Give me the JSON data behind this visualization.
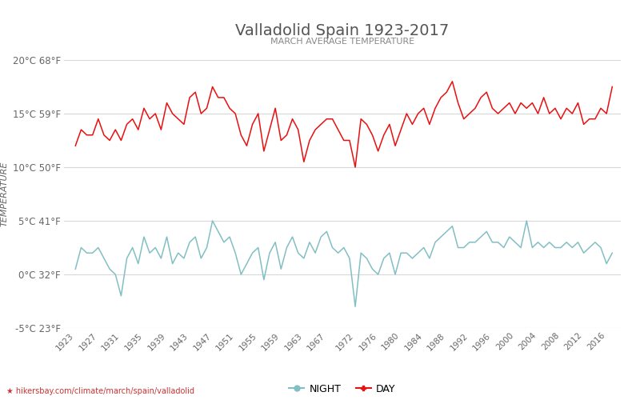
{
  "title": "Valladolid Spain 1923-2017",
  "subtitle": "MARCH AVERAGE TEMPERATURE",
  "ylabel": "TEMPERATURE",
  "xlabel_url": "hikersbay.com/climate/march/spain/valladolid",
  "ylim": [
    -5,
    20
  ],
  "yticks_c": [
    -5,
    0,
    5,
    10,
    15,
    20
  ],
  "yticks_f": [
    23,
    32,
    41,
    50,
    59,
    68
  ],
  "years": [
    1923,
    1924,
    1925,
    1926,
    1927,
    1928,
    1929,
    1930,
    1931,
    1932,
    1933,
    1934,
    1935,
    1936,
    1937,
    1938,
    1939,
    1940,
    1941,
    1942,
    1943,
    1944,
    1945,
    1946,
    1947,
    1948,
    1949,
    1950,
    1951,
    1952,
    1953,
    1954,
    1955,
    1956,
    1957,
    1958,
    1959,
    1960,
    1961,
    1962,
    1963,
    1964,
    1965,
    1966,
    1967,
    1968,
    1969,
    1970,
    1971,
    1972,
    1973,
    1974,
    1975,
    1976,
    1977,
    1978,
    1979,
    1980,
    1981,
    1982,
    1983,
    1984,
    1985,
    1986,
    1987,
    1988,
    1989,
    1990,
    1991,
    1992,
    1993,
    1994,
    1995,
    1996,
    1997,
    1998,
    1999,
    2000,
    2001,
    2002,
    2003,
    2004,
    2005,
    2006,
    2007,
    2008,
    2009,
    2010,
    2011,
    2012,
    2013,
    2014,
    2015,
    2016,
    2017
  ],
  "day_temps": [
    12.0,
    13.5,
    13.0,
    13.0,
    14.5,
    13.0,
    12.5,
    13.5,
    12.5,
    14.0,
    14.5,
    13.5,
    15.5,
    14.5,
    15.0,
    13.5,
    16.0,
    15.0,
    14.5,
    14.0,
    16.5,
    17.0,
    15.0,
    15.5,
    17.5,
    16.5,
    16.5,
    15.5,
    15.0,
    13.0,
    12.0,
    14.0,
    15.0,
    11.5,
    13.5,
    15.5,
    12.5,
    13.0,
    14.5,
    13.5,
    10.5,
    12.5,
    13.5,
    14.0,
    14.5,
    14.5,
    13.5,
    12.5,
    12.5,
    10.0,
    14.5,
    14.0,
    13.0,
    11.5,
    13.0,
    14.0,
    12.0,
    13.5,
    15.0,
    14.0,
    15.0,
    15.5,
    14.0,
    15.5,
    16.5,
    17.0,
    18.0,
    16.0,
    14.5,
    15.0,
    15.5,
    16.5,
    17.0,
    15.5,
    15.0,
    15.5,
    16.0,
    15.0,
    16.0,
    15.5,
    16.0,
    15.0,
    16.5,
    15.0,
    15.5,
    14.5,
    15.5,
    15.0,
    16.0,
    14.0,
    14.5,
    14.5,
    15.5,
    15.0,
    17.5
  ],
  "night_temps": [
    0.5,
    2.5,
    2.0,
    2.0,
    2.5,
    1.5,
    0.5,
    0.0,
    -2.0,
    1.5,
    2.5,
    1.0,
    3.5,
    2.0,
    2.5,
    1.5,
    3.5,
    1.0,
    2.0,
    1.5,
    3.0,
    3.5,
    1.5,
    2.5,
    5.0,
    4.0,
    3.0,
    3.5,
    2.0,
    0.0,
    1.0,
    2.0,
    2.5,
    -0.5,
    2.0,
    3.0,
    0.5,
    2.5,
    3.5,
    2.0,
    1.5,
    3.0,
    2.0,
    3.5,
    4.0,
    2.5,
    2.0,
    2.5,
    1.5,
    -3.0,
    2.0,
    1.5,
    0.5,
    0.0,
    1.5,
    2.0,
    0.0,
    2.0,
    2.0,
    1.5,
    2.0,
    2.5,
    1.5,
    3.0,
    3.5,
    4.0,
    4.5,
    2.5,
    2.5,
    3.0,
    3.0,
    3.5,
    4.0,
    3.0,
    3.0,
    2.5,
    3.5,
    3.0,
    2.5,
    5.0,
    2.5,
    3.0,
    2.5,
    3.0,
    2.5,
    2.5,
    3.0,
    2.5,
    3.0,
    2.0,
    2.5,
    3.0,
    2.5,
    1.0,
    2.0
  ],
  "day_color": "#e81010",
  "night_color": "#82bfc4",
  "bg_color": "#ffffff",
  "grid_color": "#d8d8d8",
  "title_color": "#555555",
  "subtitle_color": "#888888",
  "tick_color": "#666666",
  "ylabel_color": "#666666",
  "url_color": "#cc3333",
  "url_icon_color": "#e8a030",
  "xtick_years": [
    1923,
    1927,
    1931,
    1935,
    1939,
    1943,
    1947,
    1951,
    1955,
    1959,
    1963,
    1967,
    1972,
    1976,
    1980,
    1984,
    1988,
    1992,
    1996,
    2000,
    2004,
    2008,
    2012,
    2016
  ]
}
